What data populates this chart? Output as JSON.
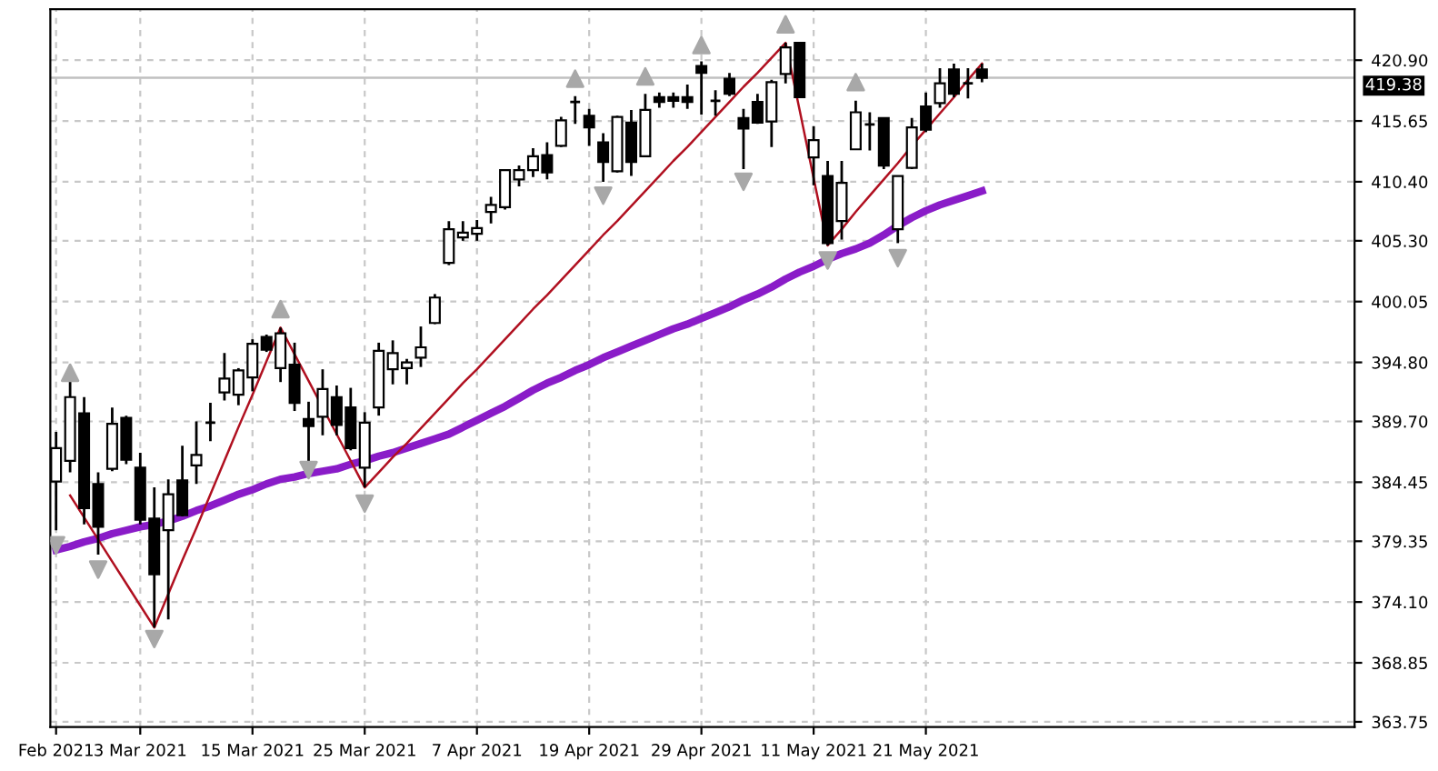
{
  "chart_data": {
    "type": "candlestick",
    "categories": [
      "Feb 2021",
      null,
      null,
      null,
      null,
      null,
      "3 Mar 2021",
      null,
      null,
      null,
      null,
      null,
      null,
      null,
      "15 Mar 2021",
      null,
      null,
      null,
      null,
      null,
      null,
      null,
      "25 Mar 2021",
      null,
      null,
      null,
      null,
      null,
      null,
      null,
      "7 Apr 2021",
      null,
      null,
      null,
      null,
      null,
      null,
      null,
      "19 Apr 2021",
      null,
      null,
      null,
      null,
      null,
      null,
      null,
      "29 Apr 2021",
      null,
      null,
      null,
      null,
      null,
      null,
      null,
      "11 May 2021",
      null,
      null,
      null,
      null,
      null,
      null,
      null,
      "21 May 2021",
      null,
      null,
      null,
      null
    ],
    "ohlc": [
      [
        384.5,
        388.8,
        380.3,
        387.4
      ],
      [
        386.3,
        393.6,
        385.3,
        391.8
      ],
      [
        390.4,
        391.8,
        380.8,
        382.2
      ],
      [
        384.3,
        385.3,
        378.2,
        380.6
      ],
      [
        385.6,
        390.9,
        385.4,
        389.5
      ],
      [
        390.0,
        390.2,
        386.0,
        386.4
      ],
      [
        385.7,
        387.0,
        380.8,
        381.2
      ],
      [
        381.3,
        384.0,
        371.9,
        376.5
      ],
      [
        380.3,
        384.7,
        372.6,
        383.4
      ],
      [
        384.6,
        387.6,
        381.5,
        381.6
      ],
      [
        385.9,
        389.7,
        384.3,
        386.8
      ],
      [
        389.6,
        391.3,
        388.0,
        389.6
      ],
      [
        392.2,
        395.6,
        391.5,
        393.4
      ],
      [
        392.0,
        394.3,
        391.1,
        394.1
      ],
      [
        393.5,
        396.8,
        392.3,
        396.4
      ],
      [
        397.0,
        397.2,
        395.7,
        395.9
      ],
      [
        394.3,
        397.8,
        393.1,
        397.3
      ],
      [
        394.6,
        396.5,
        390.6,
        391.3
      ],
      [
        389.9,
        391.4,
        386.0,
        389.3
      ],
      [
        390.1,
        394.2,
        388.5,
        392.5
      ],
      [
        391.8,
        392.8,
        388.5,
        389.4
      ],
      [
        390.9,
        392.6,
        387.2,
        387.4
      ],
      [
        385.7,
        390.5,
        384.0,
        389.6
      ],
      [
        390.9,
        396.5,
        390.2,
        395.8
      ],
      [
        394.2,
        396.7,
        392.9,
        395.6
      ],
      [
        394.3,
        395.1,
        392.9,
        394.8
      ],
      [
        395.2,
        397.9,
        394.4,
        396.1
      ],
      [
        398.2,
        400.7,
        398.1,
        400.4
      ],
      [
        403.4,
        407.0,
        403.2,
        406.3
      ],
      [
        405.6,
        407.0,
        405.3,
        406.0
      ],
      [
        405.9,
        407.1,
        405.3,
        406.4
      ],
      [
        407.8,
        409.1,
        406.8,
        408.4
      ],
      [
        408.2,
        411.4,
        408.0,
        411.4
      ],
      [
        410.6,
        411.8,
        410.0,
        411.4
      ],
      [
        411.4,
        413.3,
        410.8,
        412.6
      ],
      [
        412.7,
        413.8,
        410.6,
        411.2
      ],
      [
        413.5,
        416.0,
        413.4,
        415.7
      ],
      [
        417.3,
        417.8,
        415.4,
        417.3
      ],
      [
        416.1,
        416.7,
        413.5,
        415.1
      ],
      [
        413.8,
        414.6,
        410.4,
        412.1
      ],
      [
        411.3,
        416.1,
        411.2,
        416.0
      ],
      [
        415.5,
        416.6,
        410.9,
        412.1
      ],
      [
        412.6,
        418.0,
        412.6,
        416.6
      ],
      [
        417.7,
        418.1,
        416.8,
        417.3
      ],
      [
        417.7,
        418.1,
        416.8,
        417.4
      ],
      [
        417.7,
        418.8,
        416.7,
        417.3
      ],
      [
        420.4,
        420.8,
        416.2,
        419.8
      ],
      [
        417.4,
        418.3,
        416.1,
        417.4
      ],
      [
        419.3,
        419.8,
        417.8,
        418.0
      ],
      [
        415.9,
        416.7,
        411.5,
        415.0
      ],
      [
        417.3,
        418.0,
        415.4,
        415.5
      ],
      [
        415.6,
        419.2,
        413.4,
        419.0
      ],
      [
        419.7,
        422.4,
        418.9,
        422.0
      ],
      [
        422.4,
        422.4,
        417.7,
        417.7
      ],
      [
        412.5,
        415.2,
        410.1,
        414.0
      ],
      [
        410.9,
        412.2,
        404.9,
        405.1
      ],
      [
        407.0,
        412.2,
        405.4,
        410.3
      ],
      [
        413.2,
        417.4,
        413.2,
        416.4
      ],
      [
        415.35,
        416.4,
        413.1,
        415.35
      ],
      [
        415.9,
        415.9,
        411.5,
        411.8
      ],
      [
        406.3,
        410.9,
        405.1,
        410.9
      ],
      [
        411.6,
        415.9,
        411.5,
        415.1
      ],
      [
        416.9,
        418.1,
        414.7,
        414.9
      ],
      [
        417.2,
        420.2,
        416.8,
        418.9
      ],
      [
        420.1,
        420.6,
        417.7,
        418.0
      ],
      [
        418.9,
        420.2,
        417.6,
        418.9
      ],
      [
        420.1,
        420.6,
        419.0,
        419.38
      ]
    ],
    "series": [
      {
        "type": "line",
        "color": "#8a1cc8",
        "values": [
          378.6,
          378.9,
          379.3,
          379.6,
          380.0,
          380.3,
          380.6,
          380.8,
          381.1,
          381.5,
          382.0,
          382.4,
          382.9,
          383.4,
          383.8,
          384.3,
          384.7,
          384.9,
          385.2,
          385.4,
          385.6,
          386.0,
          386.3,
          386.7,
          387.0,
          387.4,
          387.8,
          388.2,
          388.6,
          389.2,
          389.8,
          390.4,
          391.0,
          391.7,
          392.4,
          393.0,
          393.5,
          394.1,
          394.6,
          395.2,
          395.7,
          396.2,
          396.7,
          397.2,
          397.7,
          398.1,
          398.6,
          399.1,
          399.6,
          400.2,
          400.7,
          401.3,
          402.0,
          402.6,
          403.1,
          403.7,
          404.2,
          404.6,
          405.1,
          405.8,
          406.6,
          407.3,
          407.9,
          408.4,
          408.8,
          409.2,
          409.6
        ]
      },
      {
        "type": "line",
        "color": "#b01020",
        "values": [
          null,
          383.3,
          381.4,
          379.5,
          377.6,
          375.7,
          373.8,
          371.9,
          374.8,
          377.7,
          380.5,
          383.4,
          386.3,
          389.2,
          392.0,
          394.9,
          397.8,
          395.5,
          393.2,
          390.9,
          388.6,
          386.3,
          384.0,
          385.3,
          386.6,
          387.8,
          389.1,
          390.4,
          391.7,
          393.0,
          394.2,
          395.5,
          396.8,
          398.1,
          399.4,
          400.6,
          401.9,
          403.2,
          404.5,
          405.8,
          407.0,
          408.3,
          409.6,
          410.9,
          412.2,
          413.4,
          414.7,
          416.0,
          417.3,
          418.6,
          419.8,
          421.1,
          422.4,
          416.6,
          410.7,
          404.9,
          406.3,
          407.8,
          409.2,
          410.6,
          412.0,
          413.5,
          414.9,
          416.3,
          417.7,
          419.2,
          420.6
        ]
      },
      {
        "type": "scatter",
        "color": "#a8a8a8",
        "marker": "triangle",
        "values": [
          null,
          393.9,
          null,
          null,
          null,
          null,
          null,
          null,
          null,
          null,
          null,
          null,
          null,
          null,
          null,
          null,
          399.4,
          null,
          null,
          null,
          null,
          null,
          null,
          null,
          null,
          null,
          null,
          null,
          null,
          null,
          null,
          null,
          null,
          null,
          null,
          null,
          null,
          419.3,
          null,
          null,
          null,
          null,
          419.5,
          null,
          null,
          null,
          422.2,
          null,
          null,
          null,
          null,
          null,
          424.0,
          null,
          null,
          null,
          null,
          419.0,
          null,
          null,
          null,
          null,
          null,
          null,
          null,
          null,
          null
        ]
      },
      {
        "type": "scatter",
        "color": "#a8a8a8",
        "marker": "triangle_down",
        "values": [
          379.0,
          null,
          null,
          376.9,
          null,
          null,
          null,
          370.9,
          null,
          null,
          null,
          null,
          null,
          null,
          null,
          null,
          null,
          null,
          385.5,
          null,
          null,
          null,
          382.6,
          null,
          null,
          null,
          null,
          null,
          null,
          null,
          null,
          null,
          null,
          null,
          null,
          null,
          null,
          null,
          null,
          409.2,
          null,
          null,
          null,
          null,
          null,
          null,
          null,
          null,
          null,
          410.4,
          null,
          null,
          null,
          null,
          null,
          403.6,
          null,
          null,
          null,
          null,
          403.8,
          null,
          null,
          null,
          null,
          null,
          null
        ]
      }
    ],
    "ylim": [
      363.3,
      425.3
    ],
    "yticks": [
      {
        "value": 363.75,
        "label": "363.75"
      },
      {
        "value": 368.85,
        "label": "368.85"
      },
      {
        "value": 374.1,
        "label": "374.10"
      },
      {
        "value": 379.35,
        "label": "379.35"
      },
      {
        "value": 384.45,
        "label": "384.45"
      },
      {
        "value": 389.7,
        "label": "389.70"
      },
      {
        "value": 394.8,
        "label": "394.80"
      },
      {
        "value": 400.05,
        "label": "400.05"
      },
      {
        "value": 405.3,
        "label": "405.30"
      },
      {
        "value": 410.4,
        "label": "410.40"
      },
      {
        "value": 415.65,
        "label": "415.65"
      },
      {
        "value": 420.9,
        "label": "420.90"
      }
    ],
    "ref_lines": [
      {
        "axis": "y",
        "value": 419.38,
        "label": "419.38",
        "color": "#c0c0c0"
      }
    ],
    "grid": true,
    "legend": false
  }
}
